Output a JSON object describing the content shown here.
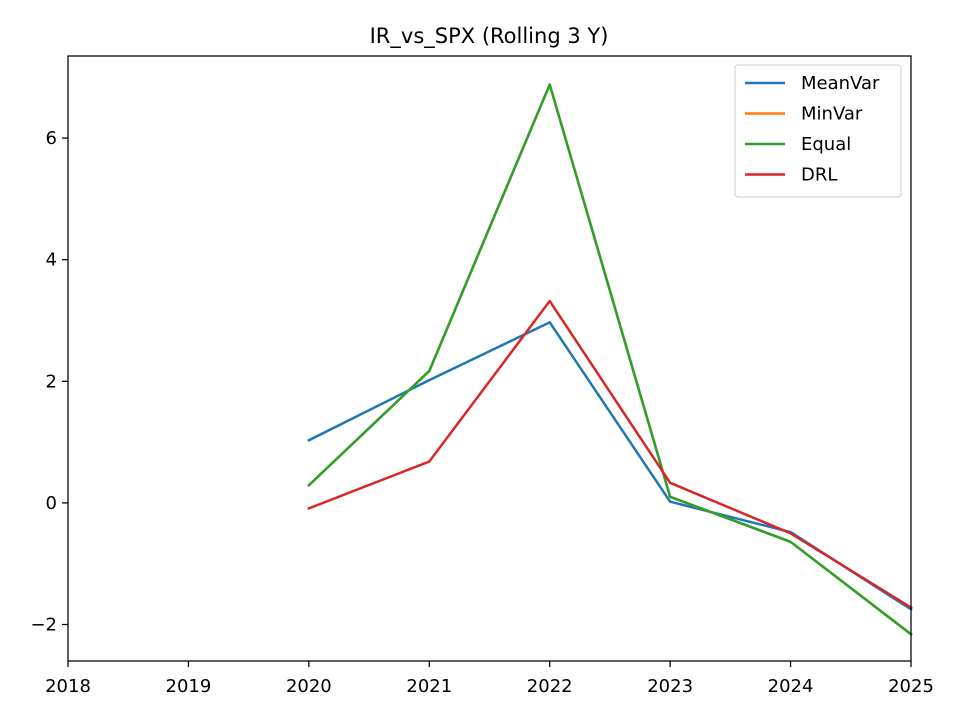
{
  "chart_data": {
    "type": "line",
    "title": "IR_vs_SPX (Rolling 3 Y)",
    "xlabel": "",
    "ylabel": "",
    "x": [
      2020,
      2021,
      2022,
      2023,
      2024,
      2025
    ],
    "xlim": [
      2018,
      2025
    ],
    "ylim": [
      -2.6,
      7.35
    ],
    "x_ticks": [
      2018,
      2019,
      2020,
      2021,
      2022,
      2023,
      2024,
      2025
    ],
    "y_ticks": [
      -2,
      0,
      2,
      4,
      6
    ],
    "y_tick_labels": [
      "−2",
      "0",
      "2",
      "4",
      "6"
    ],
    "grid": false,
    "legend_position": "top-right",
    "series": [
      {
        "name": "MeanVar",
        "color": "#1f77b4",
        "values": [
          1.03,
          2.02,
          2.97,
          0.02,
          -0.48,
          -1.75
        ]
      },
      {
        "name": "MinVar",
        "color": "#ff7f0e",
        "values": [
          0.29,
          2.17,
          6.88,
          0.1,
          -0.64,
          -2.16
        ]
      },
      {
        "name": "Equal",
        "color": "#2ca02c",
        "values": [
          0.29,
          2.17,
          6.88,
          0.1,
          -0.64,
          -2.16
        ]
      },
      {
        "name": "DRL",
        "color": "#d62728",
        "values": [
          -0.09,
          0.68,
          3.32,
          0.33,
          -0.5,
          -1.72
        ]
      }
    ]
  }
}
